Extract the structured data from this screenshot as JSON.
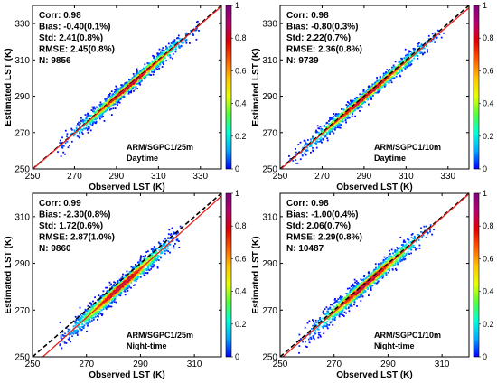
{
  "chart_data": [
    {
      "type": "scatter",
      "xlabel": "Observed LST (K)",
      "ylabel": "Estimated LST (K)",
      "xlim": [
        250,
        340
      ],
      "ylim": [
        250,
        340
      ],
      "xticks": [
        "250",
        "270",
        "290",
        "310",
        "330"
      ],
      "yticks": [
        "250",
        "270",
        "290",
        "310",
        "330"
      ],
      "stats": [
        "Corr: 0.98",
        "Bias: -0.40(0.1%)",
        "Std: 2.41(0.8%)",
        "RMSE: 2.45(0.8%)",
        "N: 9856"
      ],
      "site": "ARM/SGPC1/25m",
      "period": "Daytime",
      "data_range": [
        262,
        330
      ],
      "fit": {
        "slope": 0.997,
        "intercept": 0.5
      },
      "colorbar_ticks": [
        "0",
        "0.2",
        "0.4",
        "0.6",
        "0.8",
        "1"
      ]
    },
    {
      "type": "scatter",
      "xlabel": "Observed LST (K)",
      "ylabel": "Estimated LST (K)",
      "xlim": [
        250,
        340
      ],
      "ylim": [
        250,
        340
      ],
      "xticks": [
        "250",
        "270",
        "290",
        "310",
        "330"
      ],
      "yticks": [
        "250",
        "270",
        "290",
        "310",
        "330"
      ],
      "stats": [
        "Corr: 0.98",
        "Bias: -0.80(0.3%)",
        "Std: 2.22(0.7%)",
        "RMSE: 2.36(0.8%)",
        "N: 9739"
      ],
      "site": "ARM/SGPC1/10m",
      "period": "Daytime",
      "data_range": [
        254,
        328
      ],
      "fit": {
        "slope": 0.99,
        "intercept": 2.1
      },
      "colorbar_ticks": [
        "0",
        "0.2",
        "0.4",
        "0.6",
        "0.8",
        "1"
      ]
    },
    {
      "type": "scatter",
      "xlabel": "Observed LST (K)",
      "ylabel": "Estimated LST (K)",
      "xlim": [
        250,
        320
      ],
      "ylim": [
        250,
        320
      ],
      "xticks": [
        "250",
        "270",
        "290",
        "310"
      ],
      "yticks": [
        "250",
        "270",
        "290",
        "310"
      ],
      "stats": [
        "Corr: 0.99",
        "Bias: -2.30(0.8%)",
        "Std: 1.72(0.6%)",
        "RMSE: 2.87(1.0%)",
        "N: 9860"
      ],
      "site": "ARM/SGPC1/25m",
      "period": "Night-time",
      "data_range": [
        260,
        305
      ],
      "fit": {
        "slope": 1.04,
        "intercept": -14
      },
      "colorbar_ticks": [
        "0",
        "0.2",
        "0.4",
        "0.6",
        "0.8",
        "1"
      ]
    },
    {
      "type": "scatter",
      "xlabel": "Observed LST (K)",
      "ylabel": "Estimated LST (K)",
      "xlim": [
        250,
        320
      ],
      "ylim": [
        250,
        320
      ],
      "xticks": [
        "250",
        "270",
        "290",
        "310"
      ],
      "yticks": [
        "250",
        "270",
        "290",
        "310"
      ],
      "stats": [
        "Corr: 0.98",
        "Bias: -1.00(0.4%)",
        "Std: 2.06(0.7%)",
        "RMSE: 2.29(0.8%)",
        "N: 10487"
      ],
      "site": "ARM/SGPC1/10m",
      "period": "Night-time",
      "data_range": [
        257,
        307
      ],
      "fit": {
        "slope": 1.01,
        "intercept": -3.5
      },
      "colorbar_ticks": [
        "0",
        "0.2",
        "0.4",
        "0.6",
        "0.8",
        "1"
      ]
    }
  ],
  "colors": {
    "fit_line": "#e8201c",
    "one_to_one": "#000000",
    "colormap": [
      "#0000ff",
      "#00a8ff",
      "#00ffd8",
      "#52ff3c",
      "#e6ff00",
      "#ffc400",
      "#ff5a00",
      "#e00000",
      "#b8006e",
      "#800080"
    ]
  }
}
